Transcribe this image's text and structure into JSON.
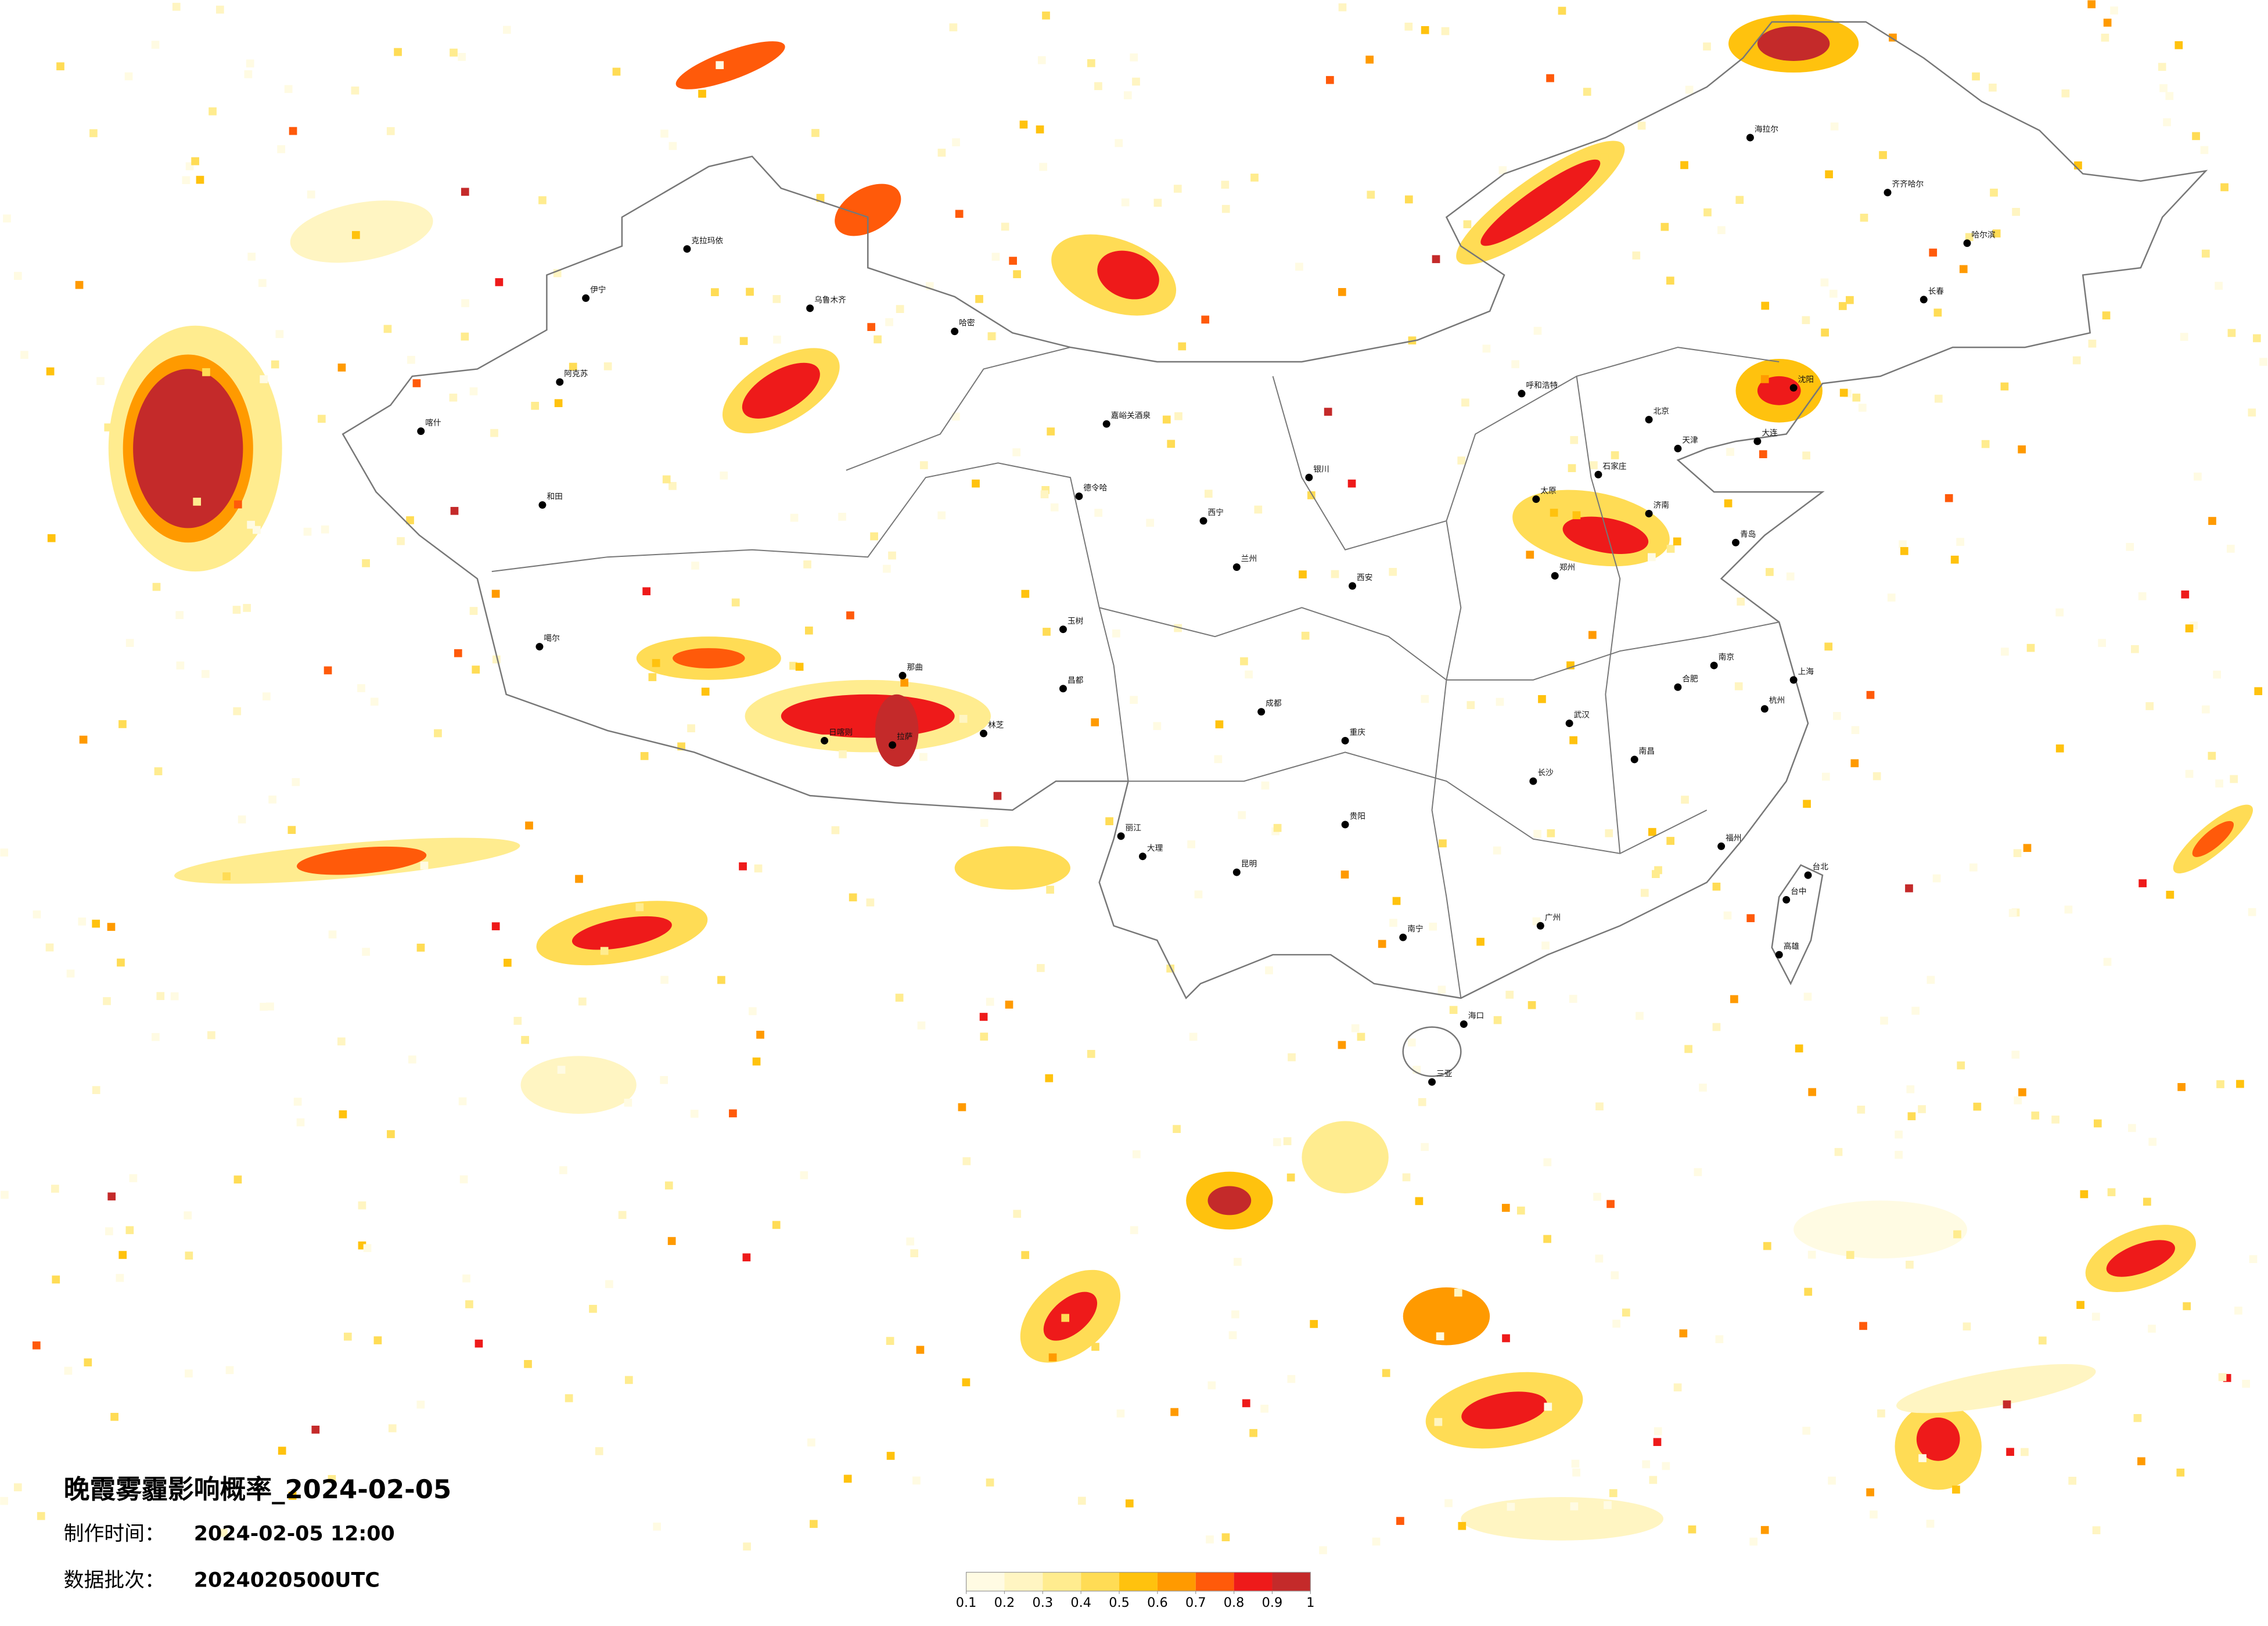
{
  "title": "晚霞雾霾影响概率_2024-02-05",
  "info": [
    {
      "label": "制作时间：",
      "value": "2024-02-05 12:00"
    },
    {
      "label": "数据批次：",
      "value": "2024020500UTC"
    }
  ],
  "legend": {
    "ticks": [
      0.1,
      0.2,
      0.3,
      0.4,
      0.5,
      0.6,
      0.7,
      0.8,
      0.9,
      1
    ],
    "colors": [
      "#fffbe3",
      "#fff5c2",
      "#ffec8f",
      "#ffdc55",
      "#ffc20e",
      "#ff9a00",
      "#ff5a0a",
      "#ee1a1a",
      "#c42a2a"
    ]
  },
  "cities": [
    "喀什",
    "和田",
    "阿克苏",
    "伊宁",
    "克拉玛依",
    "乌鲁木齐",
    "哈密",
    "嘉峪关酒泉",
    "德令哈",
    "玉树",
    "昌都",
    "林芝",
    "那曲",
    "噶尔",
    "日喀则",
    "拉萨",
    "西宁",
    "兰州",
    "西安",
    "成都",
    "重庆",
    "昆明",
    "贵阳",
    "南宁",
    "广州",
    "海口",
    "三亚",
    "福州",
    "台北",
    "台中",
    "高雄",
    "上海",
    "南京",
    "杭州",
    "武汉",
    "长沙",
    "南昌",
    "合肥",
    "郑州",
    "济南",
    "青岛",
    "大连",
    "北京",
    "天津",
    "石家庄",
    "太原",
    "呼和浩特",
    "沈阳",
    "长春",
    "哈尔滨",
    "齐齐哈尔",
    "海拉尔",
    "银川",
    "大理",
    "丽江"
  ]
}
